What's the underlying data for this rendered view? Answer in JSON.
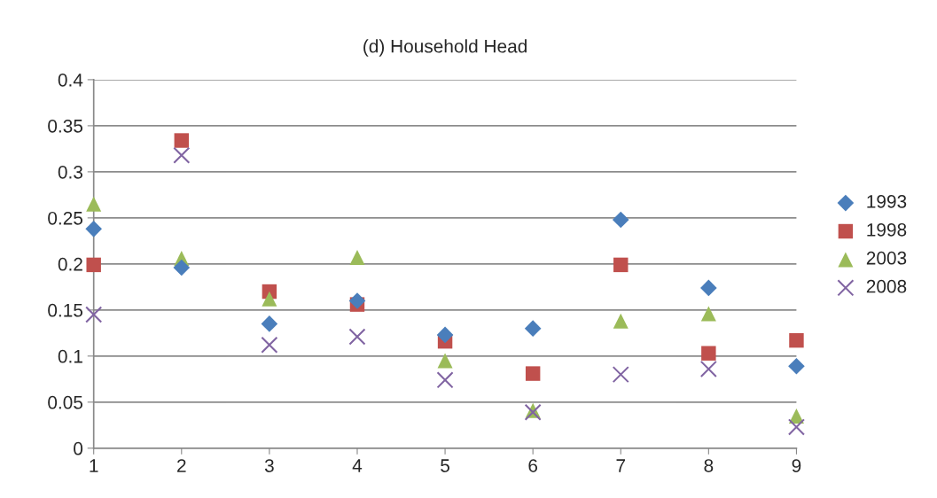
{
  "chart_data": {
    "type": "scatter",
    "title": "(d) Household Head",
    "x": [
      1,
      2,
      3,
      4,
      5,
      6,
      7,
      8,
      9
    ],
    "series": [
      {
        "name": "1993",
        "color": "#4a7ebb",
        "marker": "diamond",
        "values": [
          0.238,
          0.196,
          0.135,
          0.16,
          0.123,
          0.13,
          0.248,
          0.174,
          0.089
        ]
      },
      {
        "name": "1998",
        "color": "#c0504d",
        "marker": "square",
        "values": [
          0.199,
          0.334,
          0.17,
          0.156,
          0.116,
          0.081,
          0.199,
          0.103,
          0.117
        ]
      },
      {
        "name": "2003",
        "color": "#9bbb59",
        "marker": "triangle",
        "values": [
          0.265,
          0.206,
          0.162,
          0.207,
          0.095,
          0.041,
          0.138,
          0.146,
          0.035
        ]
      },
      {
        "name": "2008",
        "color": "#8064a2",
        "marker": "cross",
        "values": [
          0.145,
          0.318,
          0.112,
          0.121,
          0.074,
          0.039,
          0.08,
          0.086,
          0.023
        ]
      }
    ],
    "xlim": [
      1,
      9
    ],
    "xticks": [
      1,
      2,
      3,
      4,
      5,
      6,
      7,
      8,
      9
    ],
    "ylim": [
      0,
      0.4
    ],
    "yticks": [
      0,
      0.05,
      0.1,
      0.15,
      0.2,
      0.25,
      0.3,
      0.35,
      0.4
    ],
    "grid": "y",
    "legend": "right"
  }
}
